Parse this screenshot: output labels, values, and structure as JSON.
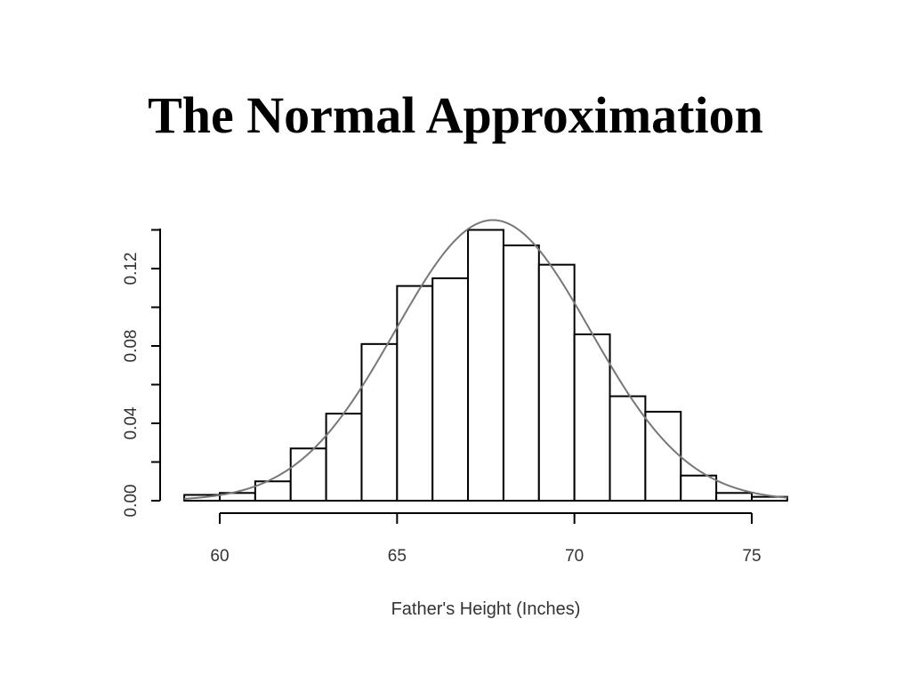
{
  "slide": {
    "title": "The Normal Approximation"
  },
  "chart_data": {
    "type": "bar",
    "title": "",
    "xlabel": "Father's Height (Inches)",
    "ylabel": "",
    "xlim": [
      59,
      76
    ],
    "ylim": [
      0,
      0.14
    ],
    "x_ticks": [
      60,
      65,
      70,
      75
    ],
    "x_tick_labels": [
      "60",
      "65",
      "70",
      "75"
    ],
    "y_ticks": [
      0,
      0.04,
      0.08,
      0.12
    ],
    "y_tick_labels": [
      "0.00",
      "0.04",
      "0.08",
      "0.12"
    ],
    "bins": [
      {
        "from": 59,
        "to": 60,
        "density": 0.003
      },
      {
        "from": 60,
        "to": 61,
        "density": 0.004
      },
      {
        "from": 61,
        "to": 62,
        "density": 0.01
      },
      {
        "from": 62,
        "to": 63,
        "density": 0.027
      },
      {
        "from": 63,
        "to": 64,
        "density": 0.045
      },
      {
        "from": 64,
        "to": 65,
        "density": 0.081
      },
      {
        "from": 65,
        "to": 66,
        "density": 0.111
      },
      {
        "from": 66,
        "to": 67,
        "density": 0.115
      },
      {
        "from": 67,
        "to": 68,
        "density": 0.14
      },
      {
        "from": 68,
        "to": 69,
        "density": 0.132
      },
      {
        "from": 69,
        "to": 70,
        "density": 0.122
      },
      {
        "from": 70,
        "to": 71,
        "density": 0.086
      },
      {
        "from": 71,
        "to": 72,
        "density": 0.054
      },
      {
        "from": 72,
        "to": 73,
        "density": 0.046
      },
      {
        "from": 73,
        "to": 74,
        "density": 0.013
      },
      {
        "from": 74,
        "to": 75,
        "density": 0.004
      },
      {
        "from": 75,
        "to": 76,
        "density": 0.002
      }
    ],
    "normal_curve": {
      "mean": 67.7,
      "sd": 2.75,
      "color": "#777777"
    },
    "grid": false,
    "legend": "none"
  }
}
